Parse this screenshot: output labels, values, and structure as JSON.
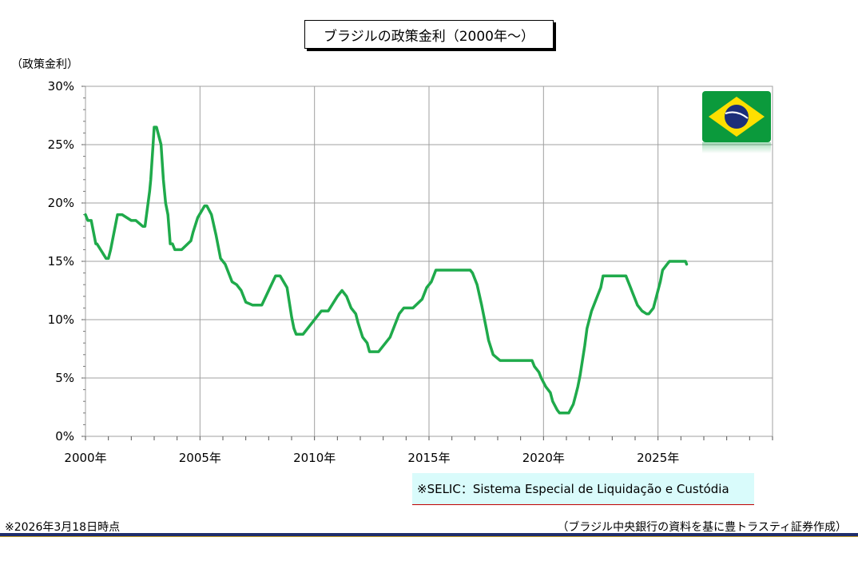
{
  "title": "ブラジルの政策金利（2000年～）",
  "y_unit_label": "（政策金利）",
  "note": "※SELIC：Sistema Especial de Liquidação e Custódia",
  "footer": {
    "date": "※2026年3月18日時点",
    "source": "（ブラジル中央銀行の資料を基に豊トラスティ証券作成）"
  },
  "flag": {
    "icon": "brazil-flag-icon",
    "colors": {
      "green": "#009b3a",
      "yellow": "#fedf00",
      "blue": "#002776"
    }
  },
  "chart_data": {
    "type": "line",
    "title": "ブラジルの政策金利（2000年～）",
    "ylabel": "（政策金利）",
    "xlabel": "",
    "x_ticks": [
      "2000年",
      "2005年",
      "2010年",
      "2015年",
      "2020年",
      "2025年"
    ],
    "y_ticks": [
      "0%",
      "5%",
      "10%",
      "15%",
      "20%",
      "25%",
      "30%"
    ],
    "xlim": [
      2000,
      2030
    ],
    "ylim": [
      0,
      30
    ],
    "grid": true,
    "line_color": "#1faa4b",
    "series": [
      {
        "x": [
          2000.0,
          2000.1,
          2000.25,
          2000.45,
          2000.5,
          2000.9,
          2001.0,
          2001.1,
          2001.4,
          2001.5,
          2001.6,
          2002.0,
          2002.2,
          2002.5,
          2002.6,
          2002.8,
          2002.85,
          2002.95,
          2003.0,
          2003.1,
          2003.3,
          2003.4,
          2003.5,
          2003.6,
          2003.7,
          2003.8,
          2003.9,
          2004.2,
          2004.6,
          2004.7,
          2004.9,
          2005.2,
          2005.3,
          2005.5,
          2005.7,
          2005.9,
          2006.1,
          2006.4,
          2006.6,
          2006.8,
          2007.0,
          2007.3,
          2007.5,
          2007.7,
          2008.3,
          2008.5,
          2008.8,
          2009.0,
          2009.1,
          2009.2,
          2009.3,
          2009.4,
          2009.5,
          2010.3,
          2010.4,
          2010.6,
          2011.0,
          2011.2,
          2011.4,
          2011.6,
          2011.8,
          2011.9,
          2012.1,
          2012.3,
          2012.4,
          2012.7,
          2012.8,
          2013.3,
          2013.5,
          2013.7,
          2013.9,
          2014.1,
          2014.3,
          2014.7,
          2014.9,
          2015.1,
          2015.3,
          2015.4,
          2015.6,
          2016.8,
          2016.9,
          2017.1,
          2017.3,
          2017.5,
          2017.6,
          2017.8,
          2018.1,
          2019.5,
          2019.6,
          2019.8,
          2019.9,
          2020.1,
          2020.3,
          2020.4,
          2020.6,
          2020.7,
          2021.1,
          2021.3,
          2021.4,
          2021.5,
          2021.6,
          2021.8,
          2021.9,
          2022.1,
          2022.3,
          2022.5,
          2022.6,
          2023.6,
          2023.8,
          2023.9,
          2024.1,
          2024.3,
          2024.5,
          2024.6,
          2024.8,
          2024.9,
          2025.1,
          2025.2,
          2025.4,
          2025.5,
          2026.0,
          2026.2,
          2026.25
        ],
        "values": [
          19.0,
          18.5,
          18.5,
          16.5,
          16.5,
          15.25,
          15.25,
          16.0,
          19.0,
          19.0,
          19.0,
          18.5,
          18.5,
          18.0,
          18.0,
          21.0,
          22.0,
          25.0,
          26.5,
          26.5,
          25.0,
          22.0,
          20.0,
          19.0,
          16.5,
          16.5,
          16.0,
          16.0,
          16.75,
          17.5,
          18.75,
          19.75,
          19.75,
          19.0,
          17.25,
          15.25,
          14.75,
          13.25,
          13.0,
          12.5,
          11.5,
          11.25,
          11.25,
          11.25,
          13.75,
          13.75,
          12.75,
          10.25,
          9.25,
          8.75,
          8.75,
          8.75,
          8.75,
          10.75,
          10.75,
          10.75,
          12.0,
          12.5,
          12.0,
          11.0,
          10.5,
          9.75,
          8.5,
          8.0,
          7.25,
          7.25,
          7.25,
          8.5,
          9.5,
          10.5,
          11.0,
          11.0,
          11.0,
          11.75,
          12.75,
          13.25,
          14.25,
          14.25,
          14.25,
          14.25,
          14.0,
          13.0,
          11.25,
          9.25,
          8.25,
          7.0,
          6.5,
          6.5,
          6.0,
          5.5,
          5.0,
          4.25,
          3.75,
          3.0,
          2.25,
          2.0,
          2.0,
          2.75,
          3.5,
          4.25,
          5.25,
          7.75,
          9.25,
          10.75,
          11.75,
          12.75,
          13.75,
          13.75,
          12.75,
          12.25,
          11.25,
          10.75,
          10.5,
          10.5,
          11.0,
          11.75,
          13.25,
          14.25,
          14.75,
          15.0,
          15.0,
          15.0,
          14.75
        ]
      }
    ]
  }
}
